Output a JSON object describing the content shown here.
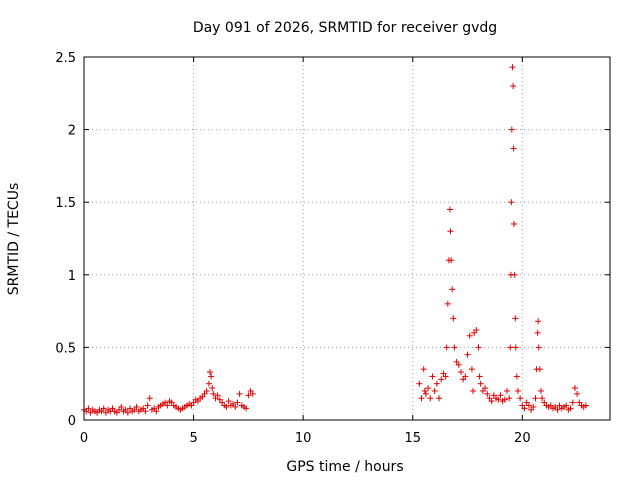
{
  "chart_data": {
    "type": "scatter",
    "title": "Day 091 of 2026, SRMTID for receiver gvdg",
    "xlabel": "GPS time / hours",
    "ylabel": "SRMTID / TECUs",
    "xlim": [
      0,
      24
    ],
    "ylim": [
      0,
      2.5
    ],
    "xticks": [
      0,
      5,
      10,
      15,
      20
    ],
    "yticks": [
      0,
      0.5,
      1,
      1.5,
      2,
      2.5
    ],
    "grid": true,
    "marker": "+",
    "color": "#e00000",
    "series": [
      {
        "name": "SRMTID gvdg",
        "points": [
          [
            0.0,
            0.07
          ],
          [
            0.1,
            0.06
          ],
          [
            0.2,
            0.08
          ],
          [
            0.3,
            0.05
          ],
          [
            0.4,
            0.07
          ],
          [
            0.5,
            0.06
          ],
          [
            0.6,
            0.05
          ],
          [
            0.7,
            0.07
          ],
          [
            0.8,
            0.06
          ],
          [
            0.9,
            0.08
          ],
          [
            1.0,
            0.05
          ],
          [
            1.1,
            0.07
          ],
          [
            1.2,
            0.06
          ],
          [
            1.3,
            0.08
          ],
          [
            1.4,
            0.06
          ],
          [
            1.5,
            0.05
          ],
          [
            1.6,
            0.07
          ],
          [
            1.7,
            0.09
          ],
          [
            1.8,
            0.06
          ],
          [
            1.9,
            0.07
          ],
          [
            2.0,
            0.05
          ],
          [
            2.1,
            0.08
          ],
          [
            2.2,
            0.06
          ],
          [
            2.3,
            0.07
          ],
          [
            2.4,
            0.09
          ],
          [
            2.5,
            0.06
          ],
          [
            2.6,
            0.07
          ],
          [
            2.7,
            0.08
          ],
          [
            2.8,
            0.06
          ],
          [
            2.9,
            0.1
          ],
          [
            3.0,
            0.15
          ],
          [
            3.1,
            0.07
          ],
          [
            3.2,
            0.08
          ],
          [
            3.3,
            0.06
          ],
          [
            3.4,
            0.09
          ],
          [
            3.5,
            0.1
          ],
          [
            3.6,
            0.11
          ],
          [
            3.7,
            0.12
          ],
          [
            3.8,
            0.1
          ],
          [
            3.9,
            0.13
          ],
          [
            4.0,
            0.12
          ],
          [
            4.1,
            0.1
          ],
          [
            4.2,
            0.09
          ],
          [
            4.3,
            0.08
          ],
          [
            4.4,
            0.07
          ],
          [
            4.5,
            0.08
          ],
          [
            4.6,
            0.09
          ],
          [
            4.7,
            0.1
          ],
          [
            4.8,
            0.11
          ],
          [
            4.9,
            0.1
          ],
          [
            5.0,
            0.12
          ],
          [
            5.1,
            0.14
          ],
          [
            5.2,
            0.13
          ],
          [
            5.3,
            0.15
          ],
          [
            5.4,
            0.16
          ],
          [
            5.5,
            0.18
          ],
          [
            5.6,
            0.2
          ],
          [
            5.7,
            0.25
          ],
          [
            5.75,
            0.33
          ],
          [
            5.8,
            0.3
          ],
          [
            5.85,
            0.22
          ],
          [
            5.9,
            0.18
          ],
          [
            6.0,
            0.15
          ],
          [
            6.1,
            0.17
          ],
          [
            6.2,
            0.14
          ],
          [
            6.3,
            0.12
          ],
          [
            6.4,
            0.1
          ],
          [
            6.5,
            0.09
          ],
          [
            6.6,
            0.13
          ],
          [
            6.7,
            0.1
          ],
          [
            6.8,
            0.11
          ],
          [
            6.9,
            0.09
          ],
          [
            7.0,
            0.12
          ],
          [
            7.1,
            0.18
          ],
          [
            7.2,
            0.1
          ],
          [
            7.3,
            0.09
          ],
          [
            7.4,
            0.08
          ],
          [
            7.5,
            0.17
          ],
          [
            7.6,
            0.2
          ],
          [
            7.7,
            0.18
          ],
          [
            15.3,
            0.25
          ],
          [
            15.4,
            0.15
          ],
          [
            15.5,
            0.35
          ],
          [
            15.55,
            0.2
          ],
          [
            15.6,
            0.18
          ],
          [
            15.7,
            0.22
          ],
          [
            15.8,
            0.15
          ],
          [
            15.9,
            0.3
          ],
          [
            16.0,
            0.2
          ],
          [
            16.1,
            0.25
          ],
          [
            16.2,
            0.15
          ],
          [
            16.3,
            0.28
          ],
          [
            16.4,
            0.32
          ],
          [
            16.5,
            0.3
          ],
          [
            16.55,
            0.5
          ],
          [
            16.6,
            0.8
          ],
          [
            16.65,
            1.1
          ],
          [
            16.7,
            1.45
          ],
          [
            16.72,
            1.3
          ],
          [
            16.75,
            1.1
          ],
          [
            16.8,
            0.9
          ],
          [
            16.85,
            0.7
          ],
          [
            16.9,
            0.5
          ],
          [
            17.0,
            0.4
          ],
          [
            17.1,
            0.38
          ],
          [
            17.2,
            0.33
          ],
          [
            17.3,
            0.28
          ],
          [
            17.4,
            0.3
          ],
          [
            17.5,
            0.45
          ],
          [
            17.6,
            0.58
          ],
          [
            17.7,
            0.35
          ],
          [
            17.75,
            0.2
          ],
          [
            17.8,
            0.6
          ],
          [
            17.9,
            0.62
          ],
          [
            18.0,
            0.5
          ],
          [
            18.05,
            0.3
          ],
          [
            18.1,
            0.25
          ],
          [
            18.2,
            0.2
          ],
          [
            18.3,
            0.22
          ],
          [
            18.4,
            0.18
          ],
          [
            18.5,
            0.15
          ],
          [
            18.6,
            0.13
          ],
          [
            18.7,
            0.17
          ],
          [
            18.8,
            0.15
          ],
          [
            18.9,
            0.14
          ],
          [
            19.0,
            0.17
          ],
          [
            19.1,
            0.13
          ],
          [
            19.2,
            0.14
          ],
          [
            19.3,
            0.2
          ],
          [
            19.4,
            0.15
          ],
          [
            19.45,
            0.5
          ],
          [
            19.48,
            1.0
          ],
          [
            19.5,
            1.5
          ],
          [
            19.52,
            2.0
          ],
          [
            19.55,
            2.43
          ],
          [
            19.58,
            2.3
          ],
          [
            19.6,
            1.87
          ],
          [
            19.62,
            1.35
          ],
          [
            19.65,
            1.0
          ],
          [
            19.68,
            0.7
          ],
          [
            19.7,
            0.5
          ],
          [
            19.75,
            0.3
          ],
          [
            19.8,
            0.2
          ],
          [
            19.9,
            0.15
          ],
          [
            20.0,
            0.1
          ],
          [
            20.1,
            0.08
          ],
          [
            20.2,
            0.12
          ],
          [
            20.3,
            0.1
          ],
          [
            20.4,
            0.07
          ],
          [
            20.5,
            0.09
          ],
          [
            20.6,
            0.15
          ],
          [
            20.65,
            0.35
          ],
          [
            20.7,
            0.6
          ],
          [
            20.72,
            0.68
          ],
          [
            20.75,
            0.5
          ],
          [
            20.8,
            0.35
          ],
          [
            20.85,
            0.2
          ],
          [
            20.9,
            0.15
          ],
          [
            21.0,
            0.12
          ],
          [
            21.1,
            0.1
          ],
          [
            21.2,
            0.09
          ],
          [
            21.3,
            0.1
          ],
          [
            21.4,
            0.08
          ],
          [
            21.5,
            0.09
          ],
          [
            21.6,
            0.07
          ],
          [
            21.7,
            0.1
          ],
          [
            21.8,
            0.08
          ],
          [
            21.9,
            0.09
          ],
          [
            22.0,
            0.1
          ],
          [
            22.1,
            0.07
          ],
          [
            22.2,
            0.08
          ],
          [
            22.3,
            0.12
          ],
          [
            22.4,
            0.22
          ],
          [
            22.5,
            0.18
          ],
          [
            22.6,
            0.12
          ],
          [
            22.7,
            0.1
          ],
          [
            22.8,
            0.09
          ],
          [
            22.9,
            0.1
          ]
        ]
      }
    ]
  }
}
